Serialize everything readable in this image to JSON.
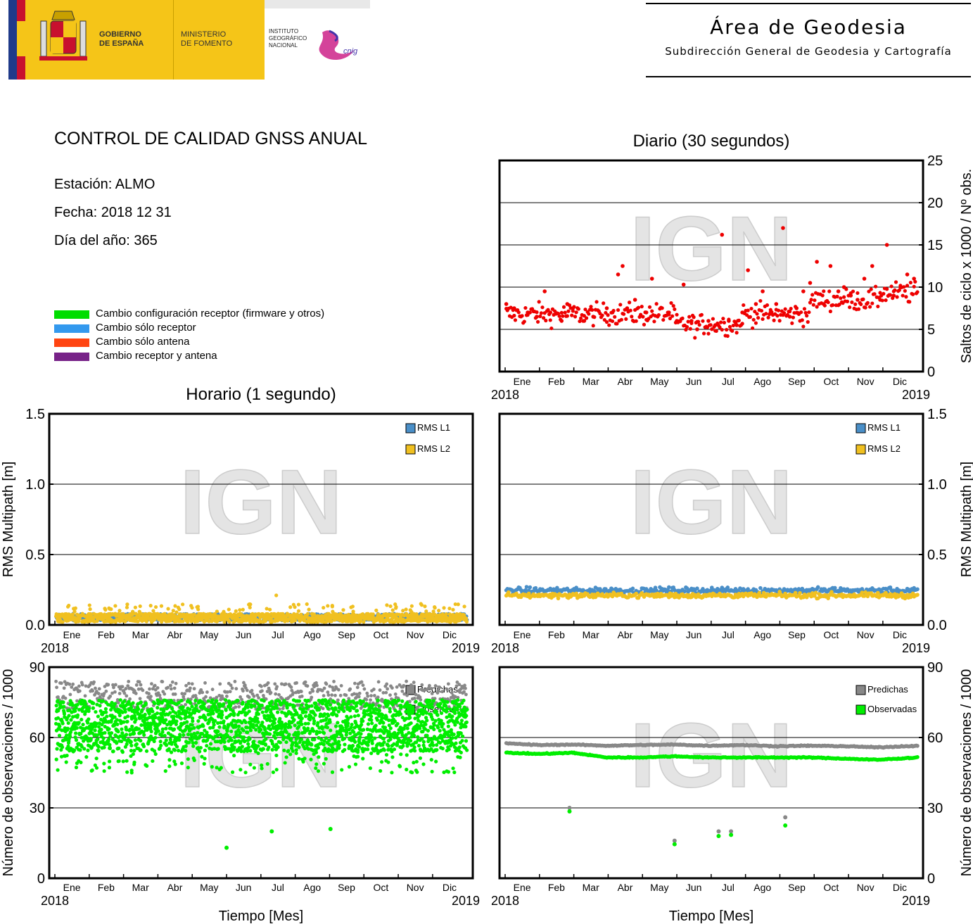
{
  "header": {
    "left_logo": {
      "gobierno": [
        "GOBIERNO",
        "DE ESPAÑA"
      ],
      "ministerio": [
        "MINISTERIO",
        "DE FOMENTO"
      ],
      "instituto": [
        "INSTITUTO",
        "GEOGRÁFICO",
        "NACIONAL"
      ],
      "cnig": "cnig"
    },
    "area_title": "Área de Geodesia",
    "area_subtitle": "Subdirección General de Geodesia y Cartografía"
  },
  "report": {
    "title": "CONTROL DE CALIDAD GNSS ANUAL",
    "station": "Estación: ALMO",
    "date": "Fecha: 2018 12 31",
    "doy": "Día del año: 365"
  },
  "legend": [
    {
      "label": "Cambio configuración receptor (firmware y otros)",
      "color": "#00dd00"
    },
    {
      "label": "Cambio sólo receptor",
      "color": "#3399ee"
    },
    {
      "label": "Cambio sólo antena",
      "color": "#ff4411"
    },
    {
      "label": "Cambio receptor y antena",
      "color": "#772288"
    }
  ],
  "sections": {
    "daily": "Diario (30 segundos)",
    "hourly": "Horario (1 segundo)",
    "time_label": "Tiempo [Mes]"
  },
  "watermark": "IGN",
  "months": [
    "Ene",
    "Feb",
    "Mar",
    "Abr",
    "May",
    "Jun",
    "Jul",
    "Ago",
    "Sep",
    "Oct",
    "Nov",
    "Dic"
  ],
  "year_start": "2018",
  "year_end": "2019",
  "chart_data": [
    {
      "id": "daily-slips",
      "type": "scatter",
      "title": "Diario (30 segundos)",
      "ylabel": "Saltos de ciclo x 1000 / Nº obs.",
      "ylim": [
        0,
        25
      ],
      "yticks": [
        "0",
        "5",
        "10",
        "15",
        "20",
        "25"
      ],
      "grid": true,
      "series": [
        {
          "color": "#ee0000",
          "description": "daily cycle slips, mostly 4–10 with spring and autumn increases",
          "x": [
            1,
            8,
            20,
            28,
            35,
            40,
            50,
            55,
            60,
            70,
            78,
            90,
            95,
            100,
            104,
            108,
            115,
            125,
            130,
            145,
            152,
            158,
            165,
            170,
            180,
            186,
            192,
            198,
            205,
            210,
            215,
            222,
            228,
            235,
            240,
            246,
            252,
            258,
            264,
            270,
            276,
            282,
            288,
            295,
            300,
            306,
            312,
            318,
            325,
            332,
            338,
            344,
            350,
            356,
            362
          ],
          "y": [
            8.0,
            7.5,
            7.0,
            6.5,
            9.5,
            7.0,
            6.0,
            8.0,
            7.5,
            6.0,
            6.5,
            7.5,
            7.0,
            11.5,
            12.5,
            7.5,
            8.5,
            7.0,
            11.0,
            7.0,
            6.0,
            10.3,
            6.0,
            5.0,
            6.0,
            5.5,
            16.2,
            6.0,
            5.5,
            7.0,
            12.0,
            8.0,
            9.5,
            7.0,
            8.0,
            17.0,
            6.5,
            7.5,
            9.5,
            10.5,
            13.0,
            8.0,
            12.5,
            9.5,
            10.0,
            9.0,
            8.5,
            11.0,
            12.5,
            8.5,
            15.0,
            9.0,
            10.0,
            11.5,
            11.0
          ]
        }
      ]
    },
    {
      "id": "hourly-multipath",
      "type": "scatter",
      "ylabel": "RMS Multipath [m]",
      "ylim": [
        0,
        1.5
      ],
      "yticks": [
        "0.0",
        "0.5",
        "1.0",
        "1.5"
      ],
      "grid": true,
      "legend": [
        {
          "name": "RMS L1",
          "color": "#4a8fc8"
        },
        {
          "name": "RMS L2",
          "color": "#f0c020"
        }
      ],
      "series": [
        {
          "name": "RMS L1",
          "color": "#4a8fc8",
          "description": "hourly values mostly 0.02–0.08 m, max about 0.14 m"
        },
        {
          "name": "RMS L2",
          "color": "#f0c020",
          "description": "hourly values mostly 0.02–0.09 m, max about 0.21 m"
        }
      ]
    },
    {
      "id": "daily-multipath",
      "type": "scatter",
      "ylabel": "RMS Multipath [m]",
      "ylim": [
        0,
        1.5
      ],
      "yticks": [
        "0.0",
        "0.5",
        "1.0",
        "1.5"
      ],
      "grid": true,
      "legend": [
        {
          "name": "RMS L1",
          "color": "#4a8fc8"
        },
        {
          "name": "RMS L2",
          "color": "#f0c020"
        }
      ],
      "series": [
        {
          "name": "RMS L1",
          "color": "#4a8fc8",
          "description": "daily values around 0.22–0.30 m"
        },
        {
          "name": "RMS L2",
          "color": "#f0c020",
          "description": "daily values around 0.18–0.25 m"
        }
      ]
    },
    {
      "id": "hourly-observations",
      "type": "scatter",
      "ylabel": "Número de observaciones / 1000",
      "xlabel": "Tiempo [Mes]",
      "ylim": [
        0,
        90
      ],
      "yticks": [
        "0",
        "30",
        "60"
      ],
      "top_tick": "90",
      "grid": true,
      "legend": [
        {
          "name": "Predichas",
          "color": "#888888"
        },
        {
          "name": "Observadas",
          "color": "#00ee00"
        }
      ],
      "series": [
        {
          "name": "Predichas",
          "color": "#888888",
          "description": "hourly predicted observations between 70 and 84"
        },
        {
          "name": "Observadas",
          "color": "#00ee00",
          "description": "hourly observed between about 45 and 80, outliers near 13, 20 and 21",
          "outliers_x": [
            152,
            192,
            244
          ],
          "outliers_y": [
            13,
            20,
            21
          ]
        }
      ]
    },
    {
      "id": "daily-observations",
      "type": "line",
      "ylabel": "Número de observaciones / 1000",
      "xlabel": "Tiempo [Mes]",
      "ylim": [
        0,
        90
      ],
      "yticks": [
        "0",
        "30",
        "60"
      ],
      "top_tick": "90",
      "grid": true,
      "legend": [
        {
          "name": "Predichas",
          "color": "#888888"
        },
        {
          "name": "Observadas",
          "color": "#00ee00"
        }
      ],
      "series": [
        {
          "name": "Predichas",
          "color": "#888888",
          "x": [
            1,
            30,
            60,
            90,
            120,
            150,
            180,
            210,
            240,
            270,
            300,
            330,
            365
          ],
          "y": [
            57.5,
            56.8,
            57.0,
            56.5,
            56.8,
            57.0,
            56.5,
            56.8,
            56.3,
            56.5,
            56.3,
            55.8,
            56.5
          ]
        },
        {
          "name": "Observadas",
          "color": "#00ee00",
          "x": [
            1,
            30,
            60,
            90,
            120,
            150,
            180,
            210,
            240,
            270,
            300,
            330,
            365
          ],
          "y": [
            53.5,
            53.0,
            53.5,
            51.5,
            51.5,
            52.0,
            51.5,
            51.5,
            51.5,
            51.5,
            51.0,
            50.5,
            51.5
          ]
        },
        {
          "name": "Predichas-outliers",
          "color": "#888888",
          "x": [
            57,
            150,
            189,
            200,
            248
          ],
          "y": [
            30,
            16,
            20,
            20,
            26
          ]
        },
        {
          "name": "Observadas-outliers",
          "color": "#00ee00",
          "x": [
            57,
            150,
            189,
            200,
            248
          ],
          "y": [
            28.5,
            14.5,
            18,
            18.5,
            22.5
          ]
        }
      ]
    }
  ]
}
